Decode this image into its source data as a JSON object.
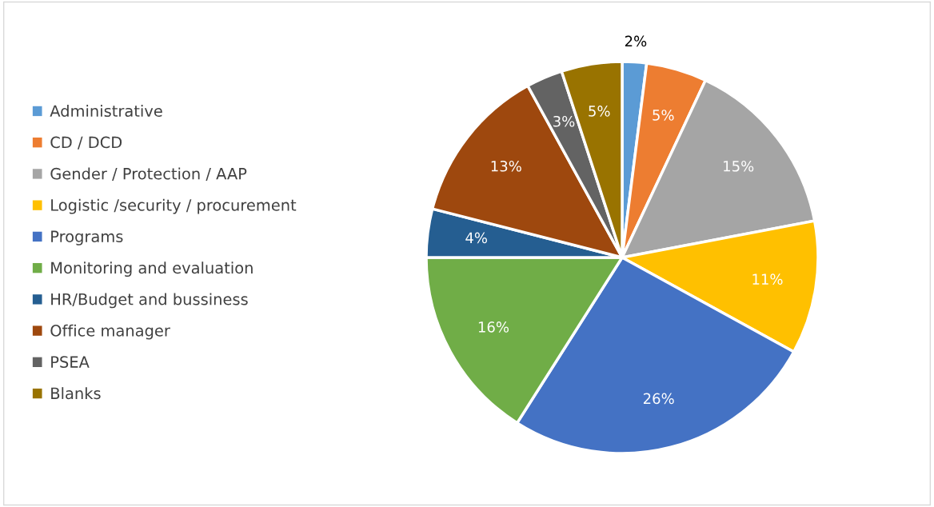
{
  "chart_data": {
    "type": "pie",
    "categories": [
      "Administrative",
      "CD / DCD",
      "Gender / Protection / AAP",
      "Logistic /security / procurement",
      "Programs",
      "Monitoring and evaluation",
      "HR/Budget and bussiness",
      "Office manager",
      "PSEA",
      "Blanks"
    ],
    "values": [
      2,
      5,
      15,
      11,
      26,
      16,
      4,
      13,
      3,
      5
    ],
    "colors": [
      "#5b9bd5",
      "#ed7d31",
      "#a5a5a5",
      "#ffc000",
      "#4472c4",
      "#70ad47",
      "#255e91",
      "#9e480e",
      "#636363",
      "#997300"
    ],
    "value_labels": [
      "2%",
      "5%",
      "15%",
      "11%",
      "26%",
      "16%",
      "4%",
      "13%",
      "3%",
      "5%"
    ],
    "legend": "left"
  }
}
